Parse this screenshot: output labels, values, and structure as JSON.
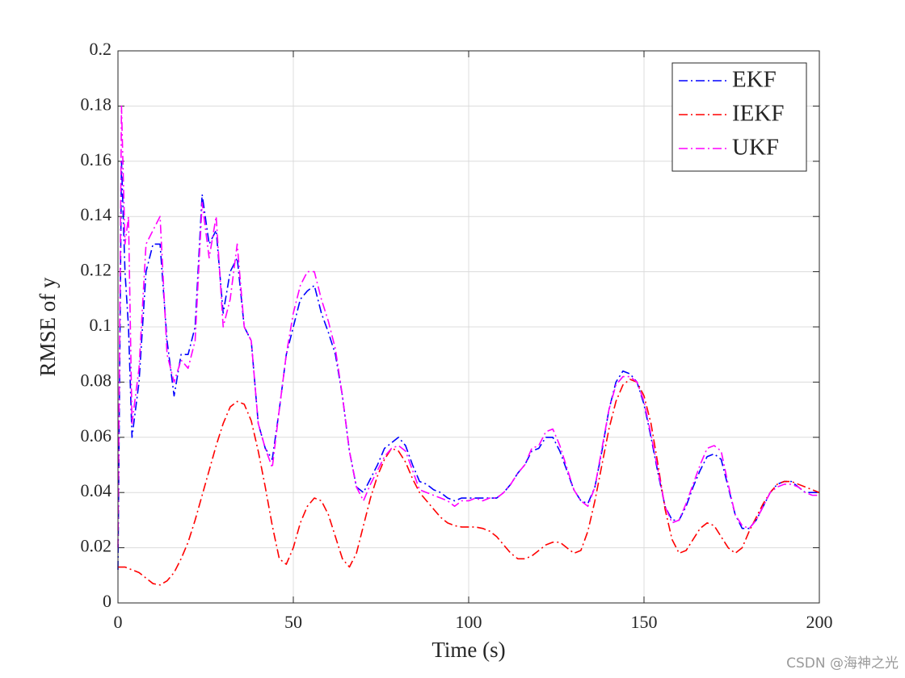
{
  "chart_data": {
    "type": "line",
    "xlabel": "Time (s)",
    "ylabel": "RMSE of y",
    "x": [
      0,
      1,
      2,
      3,
      4,
      6,
      8,
      10,
      12,
      14,
      16,
      18,
      20,
      22,
      24,
      26,
      28,
      30,
      32,
      34,
      36,
      38,
      40,
      42,
      44,
      46,
      48,
      50,
      52,
      54,
      56,
      58,
      60,
      62,
      64,
      66,
      68,
      70,
      72,
      74,
      76,
      78,
      80,
      82,
      84,
      86,
      88,
      90,
      92,
      94,
      96,
      98,
      100,
      102,
      104,
      106,
      108,
      110,
      112,
      114,
      116,
      118,
      120,
      122,
      124,
      126,
      128,
      130,
      132,
      134,
      136,
      138,
      140,
      142,
      144,
      146,
      148,
      150,
      152,
      154,
      156,
      158,
      160,
      162,
      164,
      166,
      168,
      170,
      172,
      174,
      176,
      178,
      180,
      182,
      184,
      186,
      188,
      190,
      192,
      194,
      196,
      198,
      200
    ],
    "series": [
      {
        "name": "EKF",
        "color": "#0000ff",
        "values": [
          0.012,
          0.16,
          0.12,
          0.1,
          0.06,
          0.08,
          0.12,
          0.13,
          0.13,
          0.095,
          0.075,
          0.09,
          0.09,
          0.1,
          0.148,
          0.13,
          0.135,
          0.105,
          0.12,
          0.125,
          0.1,
          0.095,
          0.065,
          0.056,
          0.052,
          0.07,
          0.09,
          0.1,
          0.11,
          0.113,
          0.115,
          0.105,
          0.098,
          0.09,
          0.075,
          0.055,
          0.042,
          0.04,
          0.045,
          0.05,
          0.056,
          0.058,
          0.06,
          0.057,
          0.05,
          0.044,
          0.043,
          0.041,
          0.04,
          0.038,
          0.037,
          0.038,
          0.038,
          0.038,
          0.038,
          0.038,
          0.038,
          0.04,
          0.043,
          0.047,
          0.05,
          0.055,
          0.056,
          0.06,
          0.06,
          0.055,
          0.048,
          0.041,
          0.037,
          0.036,
          0.042,
          0.055,
          0.07,
          0.08,
          0.084,
          0.083,
          0.08,
          0.072,
          0.06,
          0.047,
          0.035,
          0.03,
          0.03,
          0.035,
          0.042,
          0.048,
          0.053,
          0.054,
          0.052,
          0.042,
          0.032,
          0.027,
          0.027,
          0.03,
          0.035,
          0.04,
          0.043,
          0.044,
          0.044,
          0.042,
          0.04,
          0.04,
          0.04
        ]
      },
      {
        "name": "IEKF",
        "color": "#ff0000",
        "values": [
          0.013,
          0.013,
          0.013,
          0.0125,
          0.012,
          0.011,
          0.009,
          0.007,
          0.0065,
          0.008,
          0.011,
          0.016,
          0.022,
          0.03,
          0.039,
          0.048,
          0.057,
          0.065,
          0.071,
          0.073,
          0.072,
          0.066,
          0.055,
          0.042,
          0.028,
          0.016,
          0.014,
          0.02,
          0.029,
          0.035,
          0.038,
          0.037,
          0.032,
          0.024,
          0.016,
          0.013,
          0.018,
          0.028,
          0.038,
          0.046,
          0.052,
          0.056,
          0.055,
          0.051,
          0.045,
          0.04,
          0.037,
          0.034,
          0.031,
          0.029,
          0.028,
          0.0275,
          0.0275,
          0.0275,
          0.027,
          0.026,
          0.024,
          0.021,
          0.018,
          0.016,
          0.016,
          0.017,
          0.019,
          0.021,
          0.022,
          0.022,
          0.02,
          0.018,
          0.019,
          0.026,
          0.037,
          0.05,
          0.063,
          0.073,
          0.079,
          0.081,
          0.08,
          0.075,
          0.065,
          0.05,
          0.034,
          0.023,
          0.018,
          0.019,
          0.023,
          0.027,
          0.029,
          0.028,
          0.024,
          0.02,
          0.018,
          0.02,
          0.026,
          0.031,
          0.036,
          0.04,
          0.043,
          0.044,
          0.044,
          0.043,
          0.042,
          0.041,
          0.04
        ]
      },
      {
        "name": "UKF",
        "color": "#ff00ff",
        "values": [
          0.02,
          0.18,
          0.13,
          0.14,
          0.065,
          0.085,
          0.13,
          0.135,
          0.14,
          0.09,
          0.08,
          0.088,
          0.085,
          0.095,
          0.145,
          0.125,
          0.14,
          0.1,
          0.11,
          0.13,
          0.1,
          0.095,
          0.065,
          0.056,
          0.049,
          0.07,
          0.09,
          0.105,
          0.115,
          0.12,
          0.12,
          0.11,
          0.102,
          0.092,
          0.075,
          0.055,
          0.042,
          0.037,
          0.043,
          0.048,
          0.053,
          0.056,
          0.057,
          0.055,
          0.048,
          0.041,
          0.04,
          0.039,
          0.038,
          0.037,
          0.035,
          0.037,
          0.037,
          0.038,
          0.037,
          0.038,
          0.038,
          0.04,
          0.043,
          0.047,
          0.05,
          0.056,
          0.057,
          0.062,
          0.063,
          0.057,
          0.049,
          0.041,
          0.037,
          0.035,
          0.042,
          0.056,
          0.07,
          0.079,
          0.082,
          0.082,
          0.08,
          0.073,
          0.061,
          0.048,
          0.035,
          0.029,
          0.03,
          0.036,
          0.043,
          0.05,
          0.056,
          0.057,
          0.055,
          0.043,
          0.032,
          0.028,
          0.027,
          0.03,
          0.035,
          0.04,
          0.042,
          0.043,
          0.043,
          0.042,
          0.04,
          0.039,
          0.039
        ]
      }
    ],
    "xlim": [
      0,
      200
    ],
    "xticks": [
      0,
      50,
      100,
      150,
      200
    ],
    "ylim": [
      0,
      0.2
    ],
    "yticks": [
      0,
      0.02,
      0.04,
      0.06,
      0.08,
      0.1,
      0.12,
      0.14,
      0.16,
      0.18,
      0.2
    ],
    "grid": true,
    "legend": "northeast"
  },
  "watermark": "CSDN @海神之光"
}
